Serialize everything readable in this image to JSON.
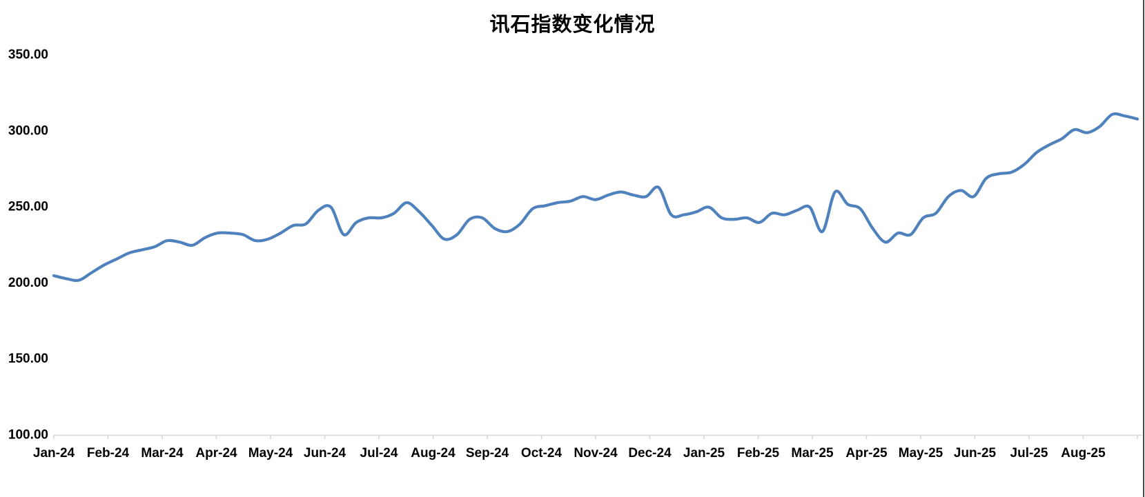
{
  "chart_data": {
    "type": "line",
    "title": "讯石指数变化情况",
    "xlabel": "",
    "ylabel": "",
    "x_tick_labels": [
      "Jan-24",
      "Feb-24",
      "Mar-24",
      "Apr-24",
      "May-24",
      "Jun-24",
      "Jul-24",
      "Aug-24",
      "Sep-24",
      "Oct-24",
      "Nov-24",
      "Dec-24",
      "Jan-25",
      "Feb-25",
      "Mar-25",
      "Apr-25",
      "May-25",
      "Jun-25",
      "Jul-25",
      "Aug-25"
    ],
    "y_tick_labels": [
      "350.00",
      "300.00",
      "250.00",
      "200.00",
      "150.00",
      "100.00"
    ],
    "ylim": [
      100,
      350
    ],
    "y_tick_step": 50,
    "grid": "off",
    "legend": "none",
    "smoothed_line": true,
    "line_color": "#4F81BD",
    "axis_color": "#d6d6d6",
    "points_per_month": 4.3,
    "series": [
      {
        "name": "",
        "values": [
          205,
          203,
          202,
          207,
          212,
          216,
          220,
          222,
          224,
          228,
          227,
          225,
          230,
          233,
          233,
          232,
          228,
          229,
          233,
          238,
          239,
          248,
          250,
          232,
          240,
          243,
          243,
          246,
          253,
          247,
          238,
          229,
          232,
          242,
          243,
          236,
          234,
          239,
          249,
          251,
          253,
          254,
          257,
          255,
          258,
          260,
          258,
          257,
          263,
          245,
          245,
          247,
          250,
          243,
          242,
          243,
          240,
          246,
          245,
          248,
          250,
          234,
          260,
          252,
          249,
          236,
          227,
          233,
          232,
          243,
          246,
          257,
          261,
          257,
          269,
          272,
          273,
          278,
          286,
          291,
          295,
          301,
          299,
          303,
          311,
          310,
          308
        ]
      }
    ]
  }
}
